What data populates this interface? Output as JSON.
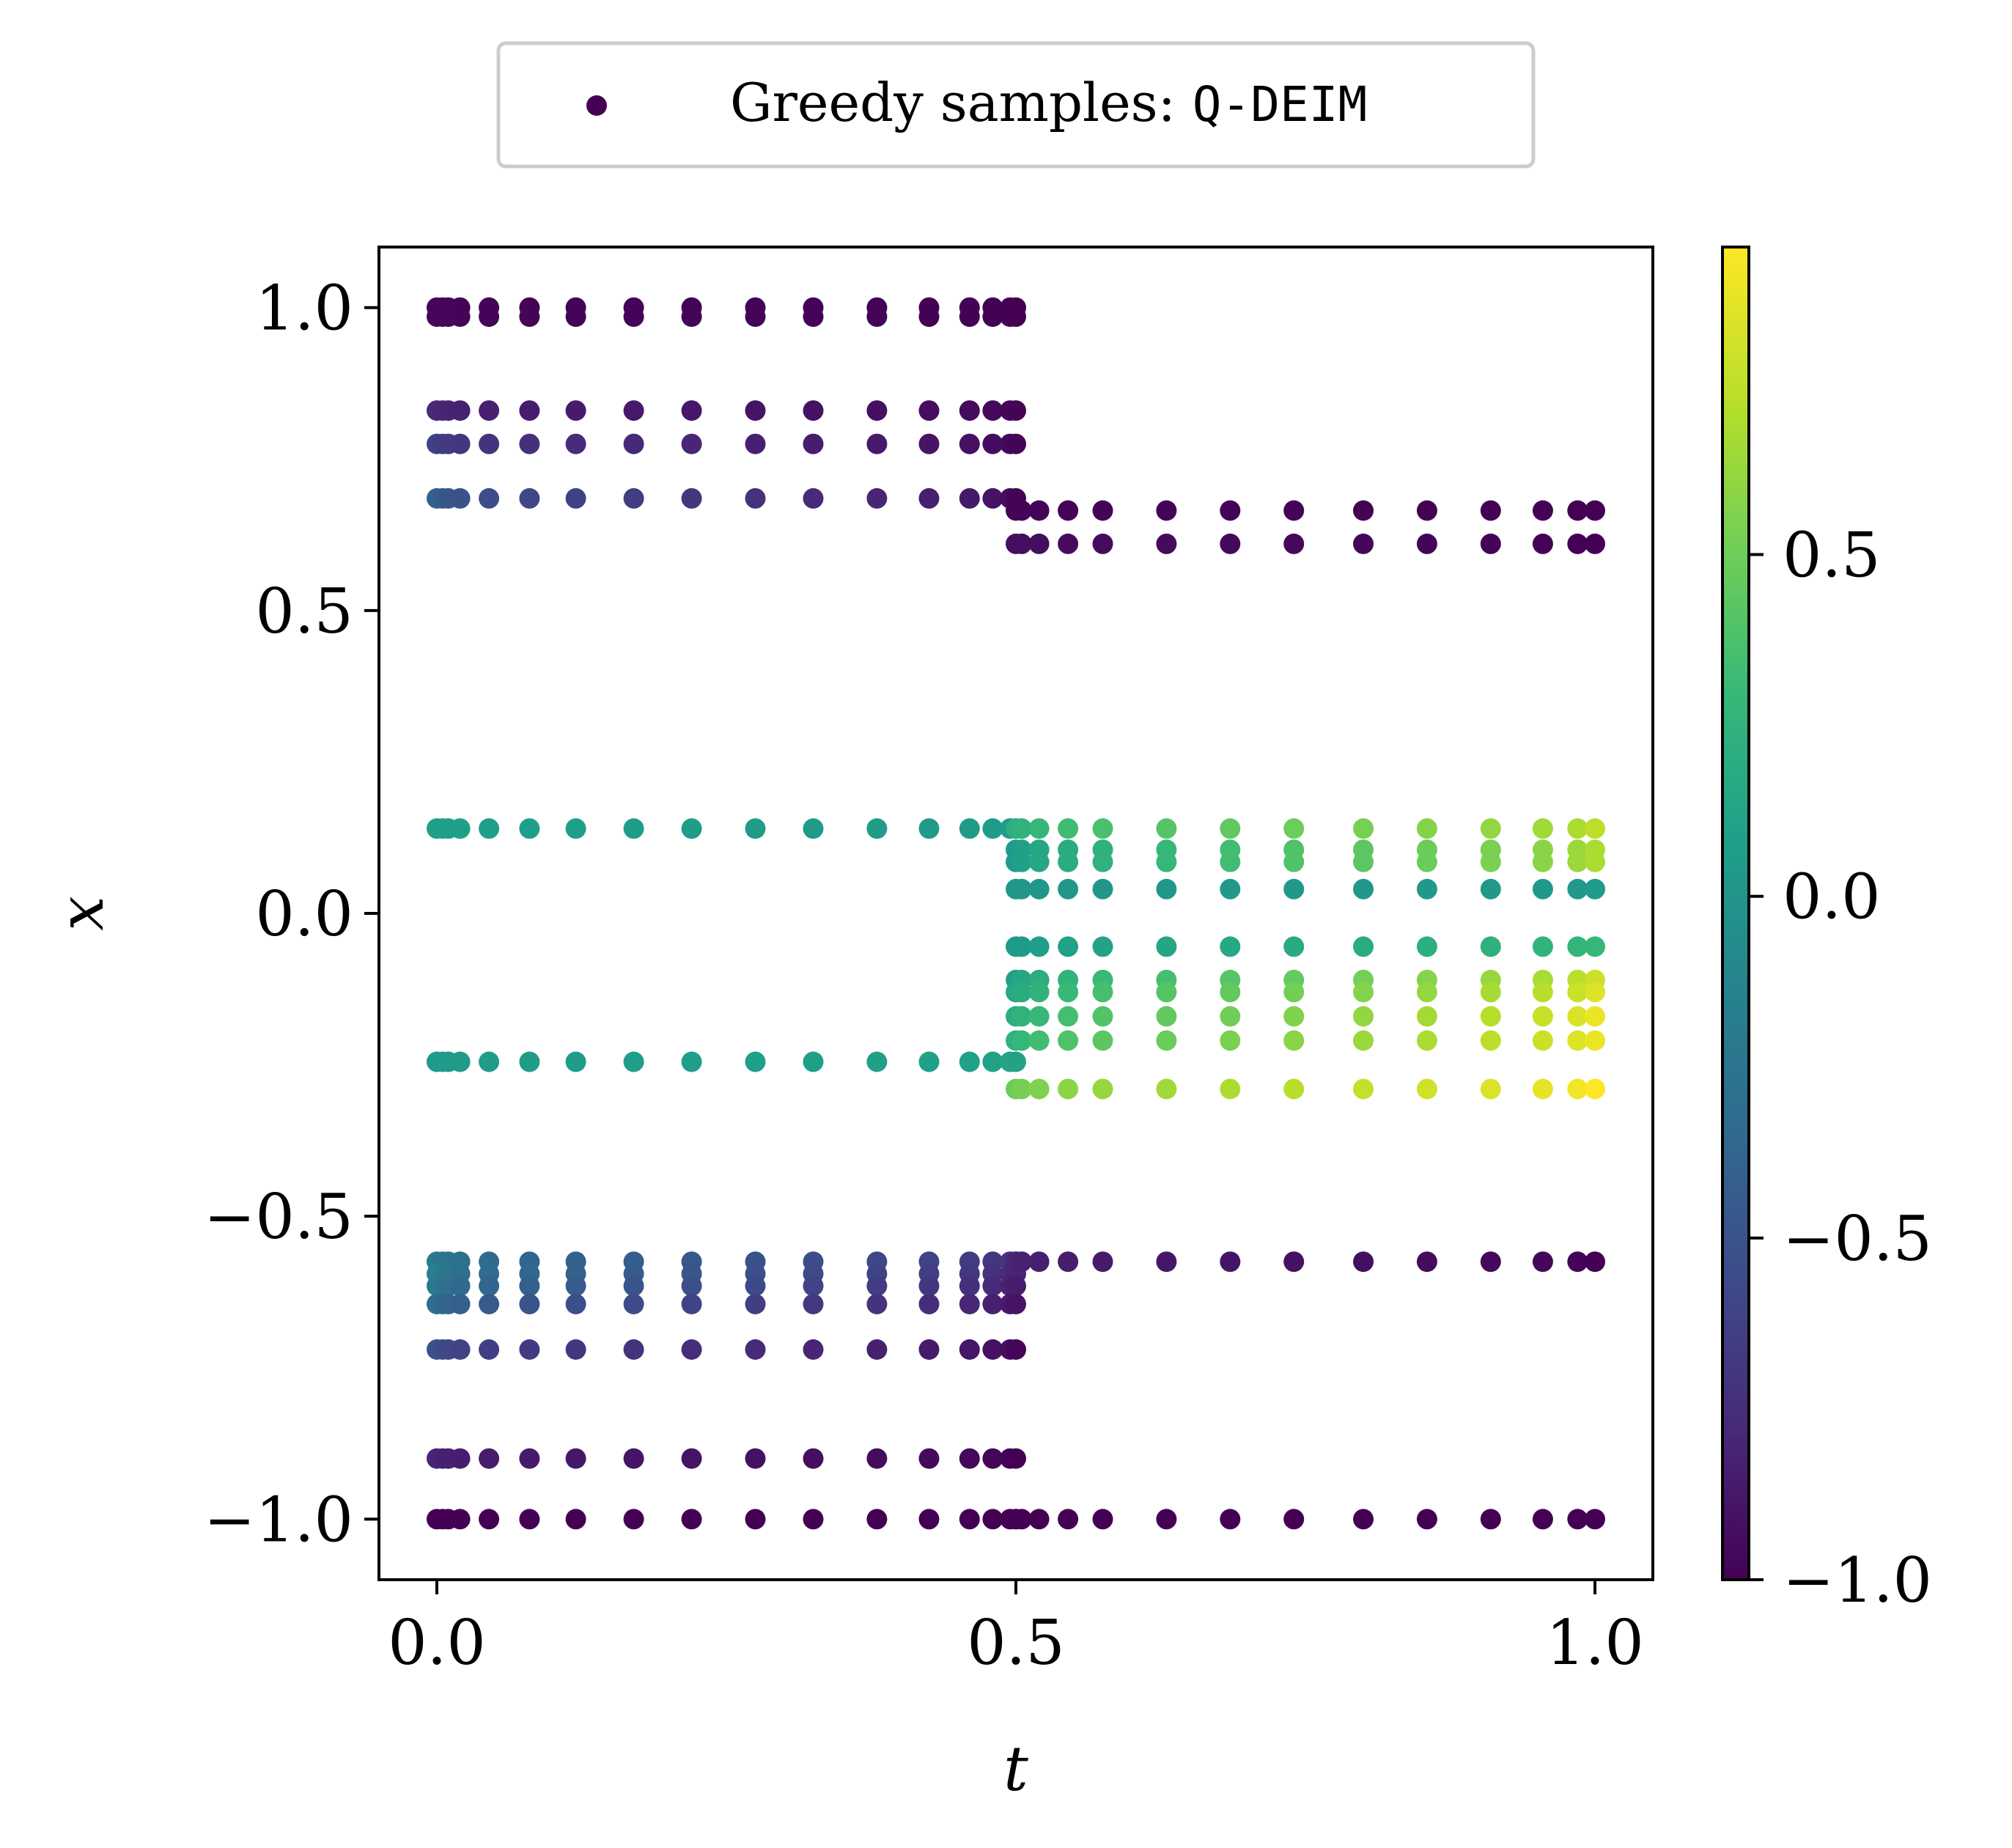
{
  "chart_data": {
    "type": "scatter",
    "xlabel": "t",
    "ylabel": "x",
    "xlim": [
      -0.05,
      1.05
    ],
    "ylim": [
      -1.1,
      1.1
    ],
    "x_ticks": [
      "0.0",
      "0.5",
      "1.0"
    ],
    "x_tick_values": [
      0.0,
      0.5,
      1.0
    ],
    "y_ticks": [
      "1.0",
      "0.5",
      "0.0",
      "−0.5",
      "−1.0"
    ],
    "y_tick_values": [
      1.0,
      0.5,
      0.0,
      -0.5,
      -1.0
    ],
    "legend": {
      "placement": "top-center",
      "label_text": "Greedy samples: ",
      "label_code": "Q-DEIM",
      "marker_color": "#440154"
    },
    "colorbar": {
      "colormap": "viridis",
      "range": [
        -1.0,
        0.95
      ],
      "ticks": [
        "0.5",
        "0.0",
        "−0.5",
        "−1.0"
      ],
      "tick_values": [
        0.5,
        0.0,
        -0.5,
        -1.0
      ]
    },
    "colormap_stops": [
      "#440154",
      "#482878",
      "#3e4989",
      "#31688e",
      "#26828e",
      "#1f9e89",
      "#35b779",
      "#6ece58",
      "#b5de2b",
      "#fde725"
    ],
    "t_left": [
      0.0,
      0.005,
      0.01,
      0.02,
      0.045,
      0.08,
      0.12,
      0.17,
      0.22,
      0.275,
      0.325,
      0.38,
      0.425,
      0.46,
      0.48,
      0.495,
      0.5
    ],
    "t_right": [
      0.5,
      0.505,
      0.52,
      0.545,
      0.575,
      0.63,
      0.685,
      0.74,
      0.8,
      0.855,
      0.91,
      0.955,
      0.985,
      1.0
    ],
    "rows_left": [
      {
        "x": 1.0,
        "c0": -0.97,
        "c1": -1.0
      },
      {
        "x": 0.985,
        "c0": -0.97,
        "c1": -1.0
      },
      {
        "x": 0.83,
        "c0": -0.78,
        "c1": -0.98
      },
      {
        "x": 0.775,
        "c0": -0.62,
        "c1": -0.98
      },
      {
        "x": 0.685,
        "c0": -0.4,
        "c1": -0.98
      },
      {
        "x": 0.14,
        "c0": 0.1,
        "c1": 0.05
      },
      {
        "x": -0.245,
        "c0": 0.05,
        "c1": 0.12
      },
      {
        "x": -0.575,
        "c0": -0.18,
        "c1": -0.75
      },
      {
        "x": -0.595,
        "c0": -0.15,
        "c1": -0.8
      },
      {
        "x": -0.615,
        "c0": -0.2,
        "c1": -0.85
      },
      {
        "x": -0.645,
        "c0": -0.3,
        "c1": -0.9
      },
      {
        "x": -0.72,
        "c0": -0.52,
        "c1": -0.97
      },
      {
        "x": -0.9,
        "c0": -0.8,
        "c1": -1.0
      },
      {
        "x": -1.0,
        "c0": -1.0,
        "c1": -1.0
      }
    ],
    "rows_right": [
      {
        "x": 0.665,
        "c0": -0.98,
        "c1": -1.0
      },
      {
        "x": 0.61,
        "c0": -0.92,
        "c1": -1.0
      },
      {
        "x": 0.14,
        "c0": 0.22,
        "c1": 0.75
      },
      {
        "x": 0.105,
        "c0": 0.05,
        "c1": 0.7
      },
      {
        "x": 0.085,
        "c0": 0.05,
        "c1": 0.7
      },
      {
        "x": 0.04,
        "c0": 0.02,
        "c1": 0.05
      },
      {
        "x": -0.055,
        "c0": 0.05,
        "c1": 0.3
      },
      {
        "x": -0.11,
        "c0": 0.1,
        "c1": 0.8
      },
      {
        "x": -0.13,
        "c0": 0.15,
        "c1": 0.85
      },
      {
        "x": -0.17,
        "c0": 0.2,
        "c1": 0.9
      },
      {
        "x": -0.21,
        "c0": 0.25,
        "c1": 0.9
      },
      {
        "x": -0.29,
        "c0": 0.5,
        "c1": 0.95
      },
      {
        "x": -0.575,
        "c0": -0.8,
        "c1": -1.0
      },
      {
        "x": -1.0,
        "c0": -1.0,
        "c1": -1.0
      }
    ]
  }
}
